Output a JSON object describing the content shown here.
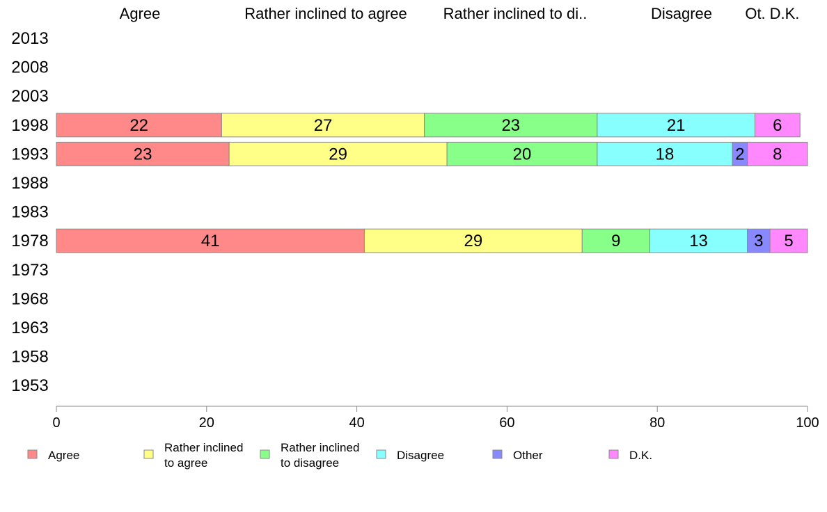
{
  "chart_data": {
    "type": "bar",
    "orientation": "horizontal",
    "stacked": true,
    "categories": [
      "2013",
      "2008",
      "2003",
      "1998",
      "1993",
      "1988",
      "1983",
      "1978",
      "1973",
      "1968",
      "1963",
      "1958",
      "1953"
    ],
    "column_headers": [
      "Agree",
      "Rather inclined to agree",
      "Rather inclined to di..",
      "Disagree",
      "Ot.",
      "D.K."
    ],
    "series": [
      {
        "name": "Agree",
        "color": "#ff8888",
        "values": [
          null,
          null,
          null,
          22,
          23,
          null,
          null,
          41,
          null,
          null,
          null,
          null,
          null
        ]
      },
      {
        "name": "Rather inclined to agree",
        "legend_lines": [
          "Rather inclined",
          "to agree"
        ],
        "color": "#ffff88",
        "values": [
          null,
          null,
          null,
          27,
          29,
          null,
          null,
          29,
          null,
          null,
          null,
          null,
          null
        ]
      },
      {
        "name": "Rather inclined to disagree",
        "legend_lines": [
          "Rather inclined",
          "to disagree"
        ],
        "color": "#88ff88",
        "values": [
          null,
          null,
          null,
          23,
          20,
          null,
          null,
          9,
          null,
          null,
          null,
          null,
          null
        ]
      },
      {
        "name": "Disagree",
        "color": "#88ffff",
        "values": [
          null,
          null,
          null,
          21,
          18,
          null,
          null,
          13,
          null,
          null,
          null,
          null,
          null
        ]
      },
      {
        "name": "Other",
        "color": "#8888ff",
        "values": [
          null,
          null,
          null,
          0,
          2,
          null,
          null,
          3,
          null,
          null,
          null,
          null,
          null
        ]
      },
      {
        "name": "D.K.",
        "color": "#ff88ff",
        "values": [
          null,
          null,
          null,
          6,
          8,
          null,
          null,
          5,
          null,
          null,
          null,
          null,
          null
        ]
      }
    ],
    "xlim": [
      0,
      100
    ],
    "xticks": [
      0,
      20,
      40,
      60,
      80,
      100
    ],
    "legend_position": "bottom",
    "grid": false
  }
}
